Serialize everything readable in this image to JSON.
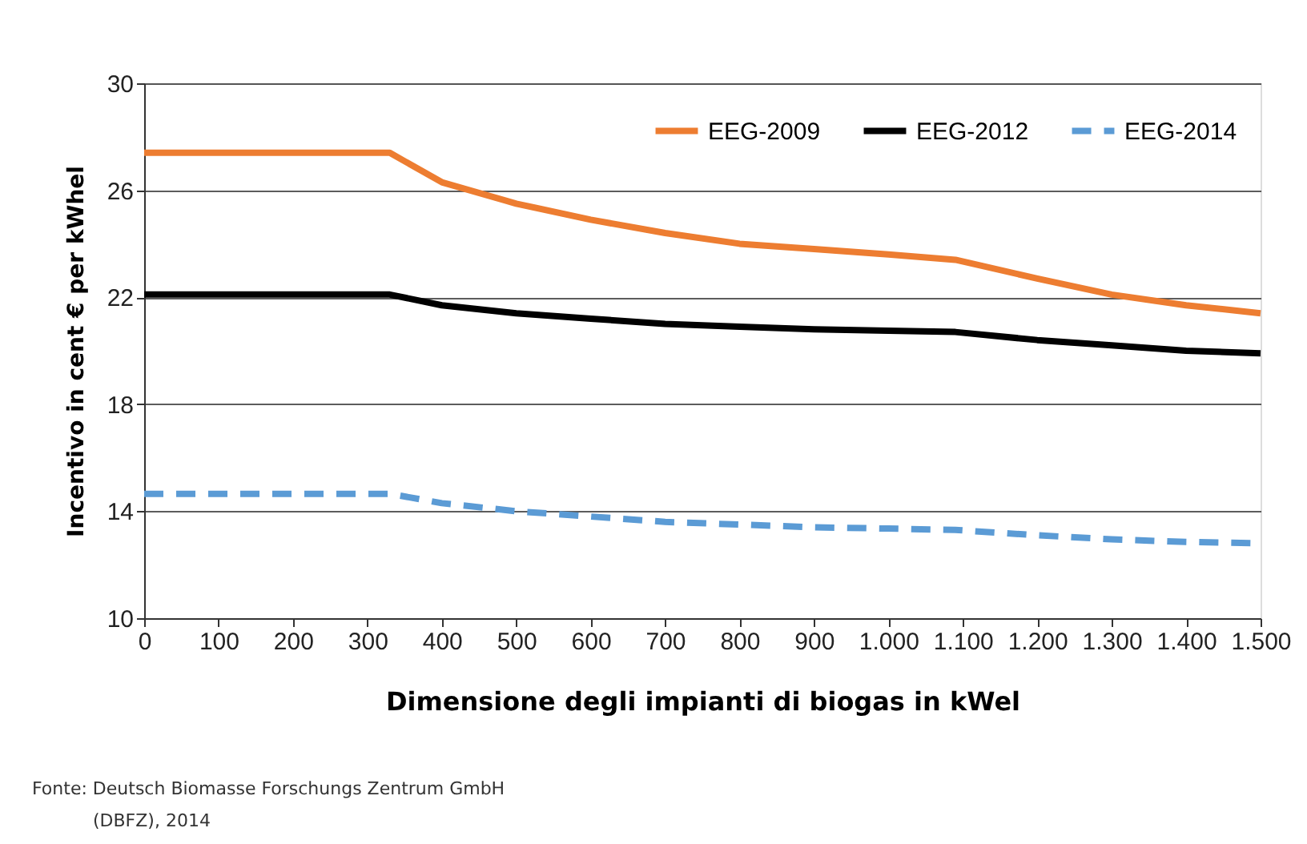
{
  "chart_data": {
    "type": "line",
    "xlabel": "Dimensione degli impianti di biogas in kWel",
    "ylabel": "Incentivo in cent € per kWhel",
    "x": [
      0,
      330,
      400,
      500,
      600,
      700,
      800,
      900,
      1000,
      1090,
      1200,
      1300,
      1400,
      1500
    ],
    "series": [
      {
        "name": "EEG-2009",
        "color": "#ed7d31",
        "line_style": "solid",
        "values": [
          27.4,
          27.4,
          26.3,
          25.5,
          24.9,
          24.4,
          24.0,
          23.8,
          23.6,
          23.4,
          22.7,
          22.1,
          21.7,
          21.4
        ]
      },
      {
        "name": "EEG-2012",
        "color": "#000000",
        "line_style": "solid",
        "values": [
          22.1,
          22.1,
          21.7,
          21.4,
          21.2,
          21.0,
          20.9,
          20.8,
          20.75,
          20.7,
          20.4,
          20.2,
          20.0,
          19.9
        ]
      },
      {
        "name": "EEG-2014",
        "color": "#5b9bd5",
        "line_style": "dashed",
        "values": [
          14.65,
          14.65,
          14.3,
          14.0,
          13.8,
          13.6,
          13.5,
          13.4,
          13.35,
          13.3,
          13.1,
          12.95,
          12.85,
          12.8
        ]
      }
    ],
    "xlim": [
      0,
      1500
    ],
    "xticks": [
      0,
      100,
      200,
      300,
      400,
      500,
      600,
      700,
      800,
      900,
      {
        "value": 1000,
        "label": "1.000"
      },
      {
        "value": 1100,
        "label": "1.100"
      },
      {
        "value": 1200,
        "label": "1.200"
      },
      {
        "value": 1300,
        "label": "1.300"
      },
      {
        "value": 1400,
        "label": "1.400"
      },
      {
        "value": 1500,
        "label": "1.500"
      }
    ],
    "ylim": [
      10,
      30
    ],
    "yticks": [
      10,
      14,
      18,
      22,
      26,
      30
    ],
    "grid": "y",
    "legend": "top right",
    "marker": "none",
    "annotations": [
      "Fonte: Deutsch Biomasse Forschungs Zentrum GmbH",
      "(DBFZ), 2014"
    ]
  }
}
